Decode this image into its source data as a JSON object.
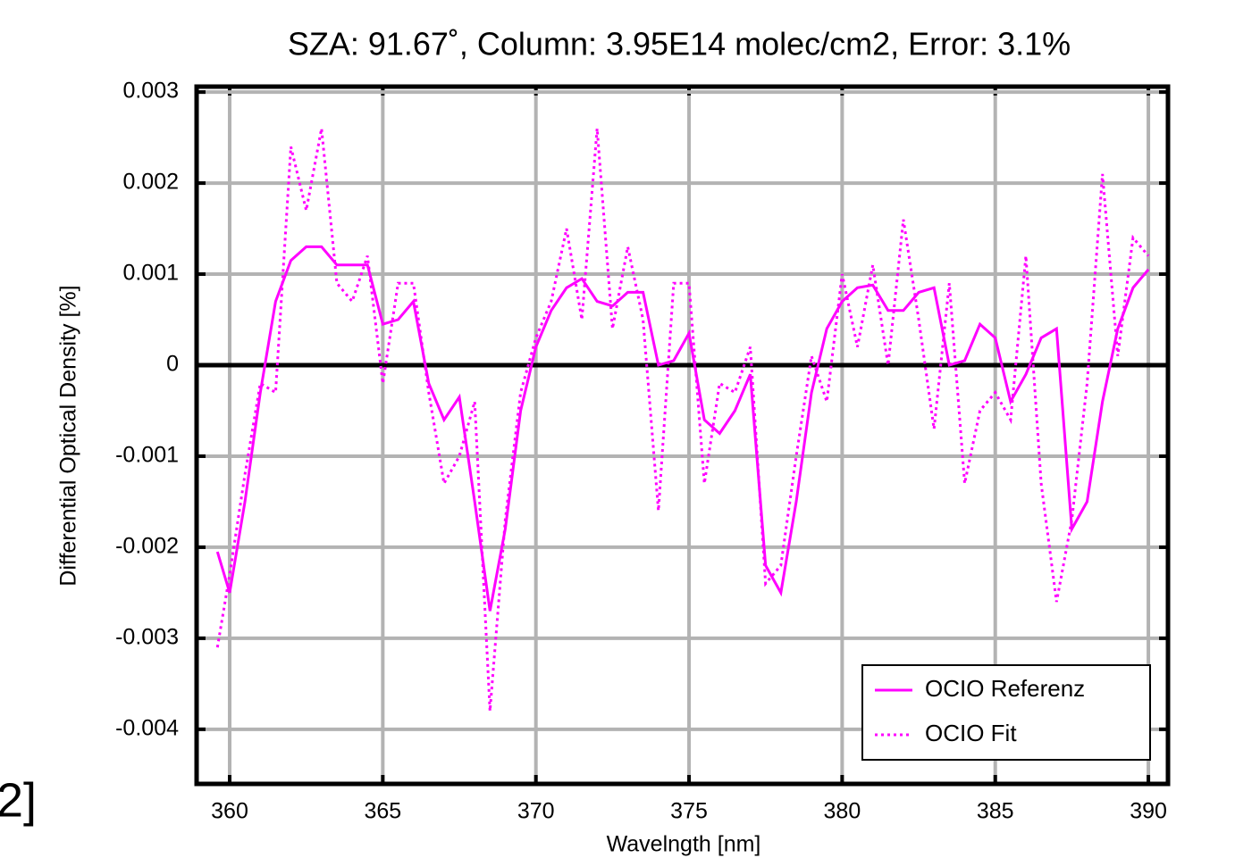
{
  "cropped_text": "2]",
  "chart_data": {
    "type": "line",
    "subtitle": "SZA: 91.67˚, Column: 3.95E14 molec/cm2, Error: 3.1%",
    "x_label": "Wavelngth [nm]",
    "y_label": "Differential Optical Density [%]",
    "x": [
      359.6,
      360,
      360.5,
      361,
      361.5,
      362,
      362.5,
      363,
      363.5,
      364,
      364.5,
      365,
      365.5,
      366,
      366.5,
      367,
      367.5,
      368,
      368.5,
      369,
      369.5,
      370,
      370.5,
      371,
      371.5,
      372,
      372.5,
      373,
      373.5,
      374,
      374.5,
      375,
      375.5,
      376,
      376.5,
      377,
      377.5,
      378,
      378.5,
      379,
      379.5,
      380,
      380.5,
      381,
      381.5,
      382,
      382.5,
      383,
      383.5,
      384,
      384.5,
      385,
      385.5,
      386,
      386.5,
      387,
      387.5,
      388,
      388.5,
      389,
      389.5,
      390
    ],
    "series": [
      {
        "name": "OCIO Referenz",
        "color": "#ff00ff",
        "dash": "solid",
        "values": [
          -0.00205,
          -0.0025,
          -0.0015,
          -0.0003,
          0.0007,
          0.00115,
          0.0013,
          0.0013,
          0.0011,
          0.0011,
          0.0011,
          0.00045,
          0.0005,
          0.0007,
          -0.0002,
          -0.0006,
          -0.00035,
          -0.0015,
          -0.0027,
          -0.0018,
          -0.0005,
          0.0002,
          0.0006,
          0.00085,
          0.00095,
          0.0007,
          0.00065,
          0.0008,
          0.0008,
          0.0,
          5e-05,
          0.00035,
          -0.0006,
          -0.00075,
          -0.0005,
          -0.0001,
          -0.0022,
          -0.0025,
          -0.0015,
          -0.0003,
          0.0004,
          0.0007,
          0.00085,
          0.00088,
          0.0006,
          0.0006,
          0.0008,
          0.00085,
          0.0,
          5e-05,
          0.00045,
          0.0003,
          -0.0004,
          -0.0001,
          0.0003,
          0.0004,
          -0.0018,
          -0.0015,
          -0.0004,
          0.0004,
          0.00085,
          0.00105
        ]
      },
      {
        "name": "OCIO Fit",
        "color": "#ff00ff",
        "dash": "dotted",
        "values": [
          -0.0031,
          -0.0023,
          -0.0012,
          -0.0002,
          -0.0003,
          0.0024,
          0.0017,
          0.0026,
          0.0009,
          0.0007,
          0.0012,
          -0.0002,
          0.0009,
          0.0009,
          -0.0003,
          -0.0013,
          -0.001,
          -0.0004,
          -0.0038,
          -0.0017,
          -0.0003,
          0.0003,
          0.0007,
          0.0015,
          0.0005,
          0.0026,
          0.0004,
          0.0013,
          0.0005,
          -0.0016,
          0.0009,
          0.0009,
          -0.0013,
          -0.0002,
          -0.0003,
          0.0002,
          -0.0024,
          -0.0022,
          -0.001,
          0.0001,
          -0.0004,
          0.001,
          0.0002,
          0.0011,
          0.0,
          0.0016,
          0.0005,
          -0.0007,
          0.0009,
          -0.0013,
          -0.0005,
          -0.0003,
          -0.0006,
          0.0012,
          -0.0013,
          -0.0026,
          -0.0017,
          -0.0002,
          0.0021,
          0.0001,
          0.0014,
          0.0012
        ]
      }
    ],
    "xlim": [
      358.92,
      390.64
    ],
    "ylim": [
      -0.0046,
      0.00306
    ],
    "xticks": [
      360,
      365,
      370,
      375,
      380,
      385,
      390
    ],
    "yticks": [
      0.003,
      0.002,
      0.001,
      0,
      -0.001,
      -0.002,
      -0.003,
      -0.004
    ],
    "grid": true,
    "legend": "lower right"
  }
}
